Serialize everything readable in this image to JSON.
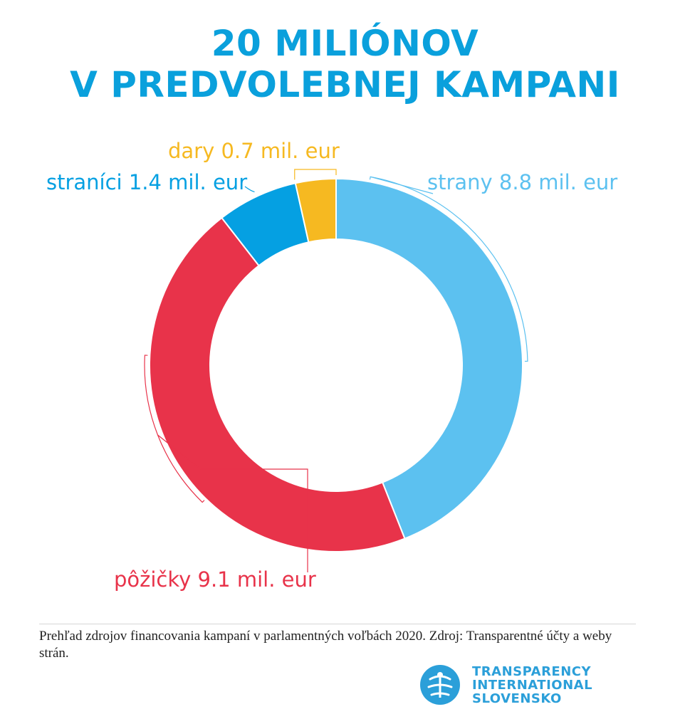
{
  "title": {
    "line1": "20 MILIÓNOV",
    "line2": "V PREDVOLEBNEJ KAMPANI"
  },
  "colors": {
    "title": "#0aa0dc",
    "strany": "#5cc1f0",
    "pozicky": "#e8334a",
    "stranici": "#05a0e2",
    "dary": "#f6b921",
    "logo": "#2b9fd9"
  },
  "chart_data": {
    "type": "pie",
    "donut": true,
    "start_angle_deg": 0,
    "direction": "clockwise",
    "slices": [
      {
        "key": "strany",
        "label": "strany 8.8 mil. eur",
        "value": 8.8,
        "color": "#5cc1f0"
      },
      {
        "key": "pozicky",
        "label": "pôžičky 9.1 mil. eur",
        "value": 9.1,
        "color": "#e8334a"
      },
      {
        "key": "stranici",
        "label": "straníci 1.4 mil. eur",
        "value": 1.4,
        "color": "#05a0e2"
      },
      {
        "key": "dary",
        "label": "dary 0.7 mil. eur",
        "value": 0.7,
        "color": "#f6b921"
      }
    ]
  },
  "caption": "Prehľad zdrojov financovania kampaní v parlamentných voľbách 2020. Zdroj: Transparentné účty a weby strán.",
  "logo": {
    "icon": "transparency-international-logo-icon",
    "line1": "TRANSPARENCY",
    "line2": "INTERNATIONAL",
    "line3": "SLOVENSKO"
  }
}
